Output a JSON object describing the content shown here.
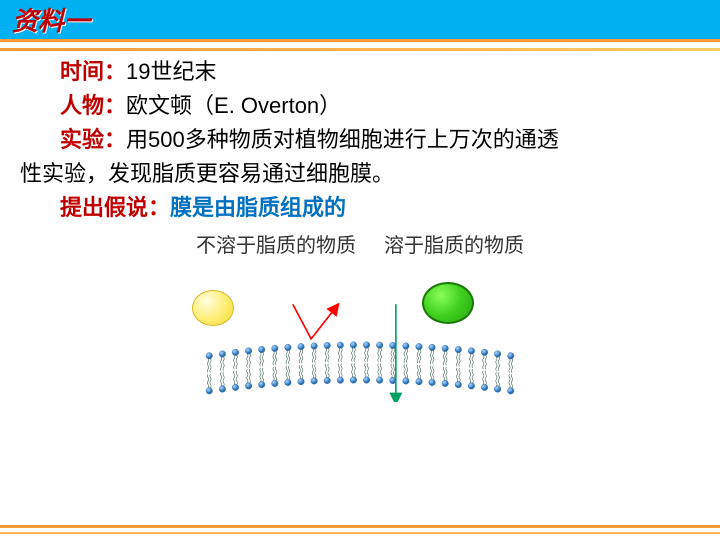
{
  "header": {
    "title": "资料一"
  },
  "body": {
    "time_label": "时间：",
    "time_val": "19世纪末",
    "person_label": "人物：",
    "person_val": "欧文顿（E. Overton）",
    "exp_label": "实验：",
    "exp_val_a": "用500多种物质对植物细胞进行上万次的通透",
    "exp_val_b": "性实验，发现脂质更容易通过细胞膜。",
    "hyp_label": "提出假说：",
    "hyp_val": "膜是由脂质组成的",
    "label_insoluble": "不溶于脂质的物质",
    "label_soluble": "溶于脂质的物质"
  },
  "diagram": {
    "lipid_count": 24,
    "head_color": "#5b9bd5",
    "head_hilite": "#a8d1ff",
    "head_border": "#2f6fb0",
    "tail_color": "#3a5a4a",
    "arrow_red": "#ff0000",
    "arrow_green": "#00a060",
    "arc_amplitude": 28,
    "head_radius": 8,
    "tail_length": 34
  }
}
